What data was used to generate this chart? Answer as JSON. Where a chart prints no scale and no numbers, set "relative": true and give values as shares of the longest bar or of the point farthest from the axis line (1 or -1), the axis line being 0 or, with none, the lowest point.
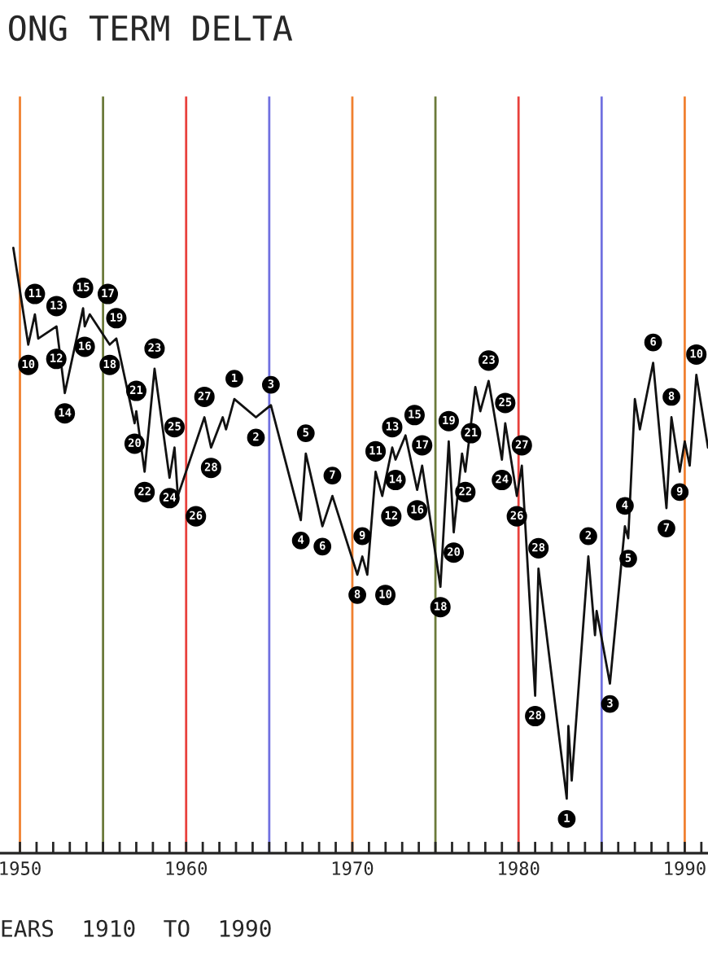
{
  "chart_data": {
    "type": "line",
    "title": "ONG TERM DELTA",
    "xlabel": "EARS  1910  TO  1990",
    "relative": true,
    "grid": false,
    "marker": "none",
    "line_style": "solid",
    "xlim": [
      1948.8,
      1991.4
    ],
    "xticks": [
      1950,
      {
        "value": 1951,
        "label": null
      },
      {
        "value": 1952,
        "label": null
      },
      {
        "value": 1953,
        "label": null
      },
      {
        "value": 1954,
        "label": null
      },
      {
        "value": 1955,
        "label": null
      },
      {
        "value": 1956,
        "label": null
      },
      {
        "value": 1957,
        "label": null
      },
      {
        "value": 1958,
        "label": null
      },
      {
        "value": 1959,
        "label": null
      },
      1960,
      {
        "value": 1961,
        "label": null
      },
      {
        "value": 1962,
        "label": null
      },
      {
        "value": 1963,
        "label": null
      },
      {
        "value": 1964,
        "label": null
      },
      {
        "value": 1965,
        "label": null
      },
      {
        "value": 1966,
        "label": null
      },
      {
        "value": 1967,
        "label": null
      },
      {
        "value": 1968,
        "label": null
      },
      {
        "value": 1969,
        "label": null
      },
      1970,
      {
        "value": 1971,
        "label": null
      },
      {
        "value": 1972,
        "label": null
      },
      {
        "value": 1973,
        "label": null
      },
      {
        "value": 1974,
        "label": null
      },
      {
        "value": 1975,
        "label": null
      },
      {
        "value": 1976,
        "label": null
      },
      {
        "value": 1977,
        "label": null
      },
      {
        "value": 1978,
        "label": null
      },
      {
        "value": 1979,
        "label": null
      },
      1980,
      {
        "value": 1981,
        "label": null
      },
      {
        "value": 1982,
        "label": null
      },
      {
        "value": 1983,
        "label": null
      },
      {
        "value": 1984,
        "label": null
      },
      {
        "value": 1985,
        "label": null
      },
      {
        "value": 1986,
        "label": null
      },
      {
        "value": 1987,
        "label": null
      },
      {
        "value": 1988,
        "label": null
      },
      {
        "value": 1989,
        "label": null
      },
      1990,
      {
        "value": 1991,
        "label": null
      }
    ],
    "series": [
      {
        "color": "#111111",
        "x": [
          1949.6,
          1950.5,
          1950.9,
          1951.1,
          1952.2,
          1952.7,
          1953.8,
          1953.9,
          1954.2,
          1955.4,
          1955.8,
          1956.9,
          1957.0,
          1957.5,
          1958.1,
          1959.0,
          1959.3,
          1959.5,
          1961.1,
          1961.5,
          1962.2,
          1962.4,
          1962.9,
          1964.2,
          1965.1,
          1966.9,
          1967.2,
          1968.2,
          1968.8,
          1970.3,
          1970.6,
          1970.9,
          1971.4,
          1971.8,
          1972.4,
          1972.6,
          1973.2,
          1973.9,
          1974.2,
          1975.3,
          1975.8,
          1976.1,
          1976.6,
          1976.8,
          1977.4,
          1977.7,
          1978.2,
          1979.0,
          1979.2,
          1979.9,
          1980.2,
          1981.0,
          1981.2,
          1982.9,
          1983.0,
          1983.2,
          1984.2,
          1984.6,
          1984.7,
          1985.5,
          1986.4,
          1986.6,
          1987.0,
          1987.3,
          1988.1,
          1988.9,
          1989.2,
          1989.7,
          1990.0,
          1990.3,
          1990.7,
          1991.4
        ],
        "values": [
          1.0,
          0.84,
          0.89,
          0.85,
          0.87,
          0.76,
          0.9,
          0.87,
          0.89,
          0.84,
          0.85,
          0.71,
          0.73,
          0.63,
          0.8,
          0.62,
          0.67,
          0.59,
          0.72,
          0.67,
          0.72,
          0.7,
          0.75,
          0.72,
          0.74,
          0.55,
          0.66,
          0.54,
          0.59,
          0.46,
          0.49,
          0.46,
          0.63,
          0.59,
          0.67,
          0.65,
          0.69,
          0.6,
          0.64,
          0.44,
          0.68,
          0.53,
          0.66,
          0.63,
          0.77,
          0.73,
          0.78,
          0.65,
          0.71,
          0.59,
          0.64,
          0.26,
          0.47,
          0.09,
          0.21,
          0.12,
          0.49,
          0.36,
          0.4,
          0.28,
          0.54,
          0.52,
          0.75,
          0.7,
          0.81,
          0.57,
          0.72,
          0.63,
          0.68,
          0.64,
          0.79,
          0.67
        ]
      }
    ],
    "ref_lines": [
      {
        "axis": "x",
        "value": 1950,
        "color": "#f08030"
      },
      {
        "axis": "x",
        "value": 1955,
        "color": "#6b7a3a"
      },
      {
        "axis": "x",
        "value": 1960,
        "color": "#e8403c"
      },
      {
        "axis": "x",
        "value": 1965,
        "color": "#7070e0"
      },
      {
        "axis": "x",
        "value": 1970,
        "color": "#f08030"
      },
      {
        "axis": "x",
        "value": 1975,
        "color": "#6b7a3a"
      },
      {
        "axis": "x",
        "value": 1980,
        "color": "#e8403c"
      },
      {
        "axis": "x",
        "value": 1985,
        "color": "#7070e0"
      },
      {
        "axis": "x",
        "value": 1990,
        "color": "#f08030"
      }
    ],
    "annotations": [
      {
        "text": "10",
        "x": 1950.5,
        "y": 0.84
      },
      {
        "text": "11",
        "x": 1950.9,
        "y": 0.89
      },
      {
        "text": "12",
        "x": 1951.1,
        "y": 0.85
      },
      {
        "text": "13",
        "x": 1952.2,
        "y": 0.87
      },
      {
        "text": "14",
        "x": 1952.7,
        "y": 0.76
      },
      {
        "text": "15",
        "x": 1953.8,
        "y": 0.9
      },
      {
        "text": "16",
        "x": 1953.9,
        "y": 0.87
      },
      {
        "text": "17",
        "x": 1954.2,
        "y": 0.89
      },
      {
        "text": "18",
        "x": 1955.4,
        "y": 0.84
      },
      {
        "text": "19",
        "x": 1955.8,
        "y": 0.85
      },
      {
        "text": "20",
        "x": 1956.9,
        "y": 0.71
      },
      {
        "text": "21",
        "x": 1957.0,
        "y": 0.73
      },
      {
        "text": "22",
        "x": 1957.5,
        "y": 0.63
      },
      {
        "text": "23",
        "x": 1958.1,
        "y": 0.8
      },
      {
        "text": "24",
        "x": 1959.0,
        "y": 0.62
      },
      {
        "text": "25",
        "x": 1959.3,
        "y": 0.67
      },
      {
        "text": "26",
        "x": 1959.5,
        "y": 0.59
      },
      {
        "text": "27",
        "x": 1961.1,
        "y": 0.72
      },
      {
        "text": "28",
        "x": 1961.5,
        "y": 0.67
      },
      {
        "text": "1",
        "x": 1962.9,
        "y": 0.75
      },
      {
        "text": "2",
        "x": 1964.2,
        "y": 0.72
      },
      {
        "text": "3",
        "x": 1965.1,
        "y": 0.74
      },
      {
        "text": "4",
        "x": 1966.9,
        "y": 0.55
      },
      {
        "text": "5",
        "x": 1967.2,
        "y": 0.66
      },
      {
        "text": "6",
        "x": 1968.2,
        "y": 0.54
      },
      {
        "text": "7",
        "x": 1968.8,
        "y": 0.59
      },
      {
        "text": "8",
        "x": 1970.3,
        "y": 0.46
      },
      {
        "text": "9",
        "x": 1970.6,
        "y": 0.49
      },
      {
        "text": "10",
        "x": 1970.9,
        "y": 0.46
      },
      {
        "text": "11",
        "x": 1971.4,
        "y": 0.63
      },
      {
        "text": "12",
        "x": 1971.8,
        "y": 0.59
      },
      {
        "text": "13",
        "x": 1972.4,
        "y": 0.67
      },
      {
        "text": "14",
        "x": 1972.6,
        "y": 0.65
      },
      {
        "text": "15",
        "x": 1973.2,
        "y": 0.69
      },
      {
        "text": "16",
        "x": 1973.9,
        "y": 0.6
      },
      {
        "text": "17",
        "x": 1974.2,
        "y": 0.64
      },
      {
        "text": "18",
        "x": 1975.3,
        "y": 0.44
      },
      {
        "text": "19",
        "x": 1975.8,
        "y": 0.68
      },
      {
        "text": "20",
        "x": 1976.1,
        "y": 0.53
      },
      {
        "text": "21",
        "x": 1976.6,
        "y": 0.66
      },
      {
        "text": "22",
        "x": 1976.8,
        "y": 0.63
      },
      {
        "text": "23",
        "x": 1978.2,
        "y": 0.78
      },
      {
        "text": "24",
        "x": 1979.0,
        "y": 0.65
      },
      {
        "text": "25",
        "x": 1979.2,
        "y": 0.71
      },
      {
        "text": "26",
        "x": 1979.9,
        "y": 0.59
      },
      {
        "text": "27",
        "x": 1980.2,
        "y": 0.64
      },
      {
        "text": "28",
        "x": 1981.0,
        "y": 0.26
      },
      {
        "text": "28",
        "x": 1981.2,
        "y": 0.47
      },
      {
        "text": "1",
        "x": 1982.9,
        "y": 0.09
      },
      {
        "text": "2",
        "x": 1984.2,
        "y": 0.49
      },
      {
        "text": "3",
        "x": 1985.5,
        "y": 0.28
      },
      {
        "text": "4",
        "x": 1986.4,
        "y": 0.54
      },
      {
        "text": "5",
        "x": 1986.6,
        "y": 0.52
      },
      {
        "text": "6",
        "x": 1988.1,
        "y": 0.81
      },
      {
        "text": "7",
        "x": 1988.9,
        "y": 0.57
      },
      {
        "text": "8",
        "x": 1989.2,
        "y": 0.72
      },
      {
        "text": "9",
        "x": 1989.7,
        "y": 0.63
      },
      {
        "text": "10",
        "x": 1990.7,
        "y": 0.79
      }
    ]
  }
}
